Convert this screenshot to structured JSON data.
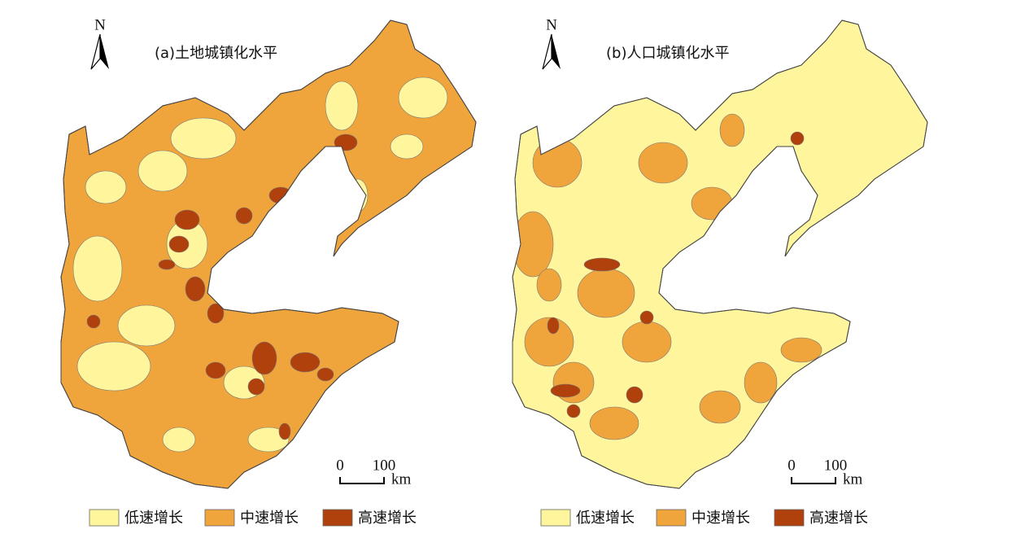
{
  "maps": [
    {
      "title": "(a)土地城镇化水平",
      "north": "N",
      "scale_ticks": [
        0,
        100
      ],
      "scale_unit": "km",
      "legend": [
        {
          "label": "低速增长",
          "color": "#fef59c"
        },
        {
          "label": "中速增长",
          "color": "#f0a43c"
        },
        {
          "label": "高速增长",
          "color": "#b0400c"
        }
      ]
    },
    {
      "title": "(b)人口城镇化水平",
      "north": "N",
      "scale_ticks": [
        0,
        100
      ],
      "scale_unit": "km",
      "legend": [
        {
          "label": "低速增长",
          "color": "#fef59c"
        },
        {
          "label": "中速增长",
          "color": "#f0a43c"
        },
        {
          "label": "高速增长",
          "color": "#b0400c"
        }
      ]
    }
  ]
}
